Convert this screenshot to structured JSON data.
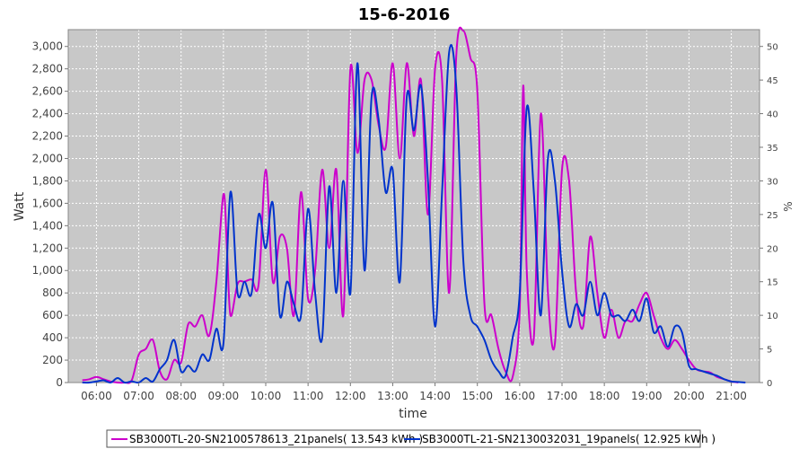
{
  "chart_data": {
    "type": "line",
    "title": "15-6-2016",
    "xlabel": "time",
    "ylabel": "Watt",
    "y2label": "%",
    "xlim": [
      "05:20",
      "21:40"
    ],
    "ylim": [
      0,
      3150
    ],
    "y2lim": [
      0,
      52.5
    ],
    "x_ticks": [
      "06:00",
      "07:00",
      "08:00",
      "09:00",
      "10:00",
      "11:00",
      "12:00",
      "13:00",
      "14:00",
      "15:00",
      "16:00",
      "17:00",
      "18:00",
      "19:00",
      "20:00",
      "21:00"
    ],
    "y_ticks": [
      "0",
      "200",
      "400",
      "600",
      "800",
      "1,000",
      "1,200",
      "1,400",
      "1,600",
      "1,800",
      "2,000",
      "2,200",
      "2,400",
      "2,600",
      "2,800",
      "3,000"
    ],
    "y2_ticks": [
      "0",
      "5",
      "10",
      "15",
      "20",
      "25",
      "30",
      "35",
      "40",
      "45",
      "50"
    ],
    "grid": true,
    "legend_position": "bottom",
    "series": [
      {
        "name": "SB3000TL-20-SN2100578613_21panels( 13.543 kWh )",
        "color": "#cc00cc",
        "x": [
          "05:40",
          "05:50",
          "06:00",
          "06:10",
          "06:20",
          "06:30",
          "06:40",
          "06:50",
          "07:00",
          "07:10",
          "07:20",
          "07:30",
          "07:40",
          "07:50",
          "08:00",
          "08:10",
          "08:20",
          "08:30",
          "08:40",
          "08:50",
          "09:00",
          "09:05",
          "09:10",
          "09:20",
          "09:30",
          "09:40",
          "09:50",
          "10:00",
          "10:10",
          "10:20",
          "10:30",
          "10:40",
          "10:50",
          "11:00",
          "11:10",
          "11:20",
          "11:30",
          "11:40",
          "11:50",
          "12:00",
          "12:10",
          "12:20",
          "12:30",
          "12:40",
          "12:50",
          "13:00",
          "13:10",
          "13:20",
          "13:30",
          "13:40",
          "13:50",
          "14:00",
          "14:10",
          "14:20",
          "14:30",
          "14:40",
          "14:50",
          "15:00",
          "15:10",
          "15:20",
          "15:30",
          "15:40",
          "15:50",
          "16:00",
          "16:05",
          "16:10",
          "16:20",
          "16:30",
          "16:40",
          "16:50",
          "17:00",
          "17:10",
          "17:20",
          "17:30",
          "17:40",
          "17:50",
          "18:00",
          "18:10",
          "18:20",
          "18:30",
          "18:40",
          "18:50",
          "19:00",
          "19:10",
          "19:20",
          "19:30",
          "19:40",
          "19:50",
          "20:00",
          "20:10",
          "20:20",
          "20:30",
          "20:40",
          "20:50",
          "21:00",
          "21:10"
        ],
        "values": [
          20,
          30,
          50,
          30,
          10,
          0,
          0,
          20,
          250,
          300,
          380,
          100,
          30,
          200,
          180,
          520,
          500,
          600,
          420,
          900,
          1680,
          1200,
          600,
          880,
          900,
          920,
          880,
          1900,
          900,
          1300,
          1200,
          600,
          1700,
          750,
          1000,
          1900,
          1200,
          1900,
          600,
          2800,
          2050,
          2700,
          2700,
          2300,
          2100,
          2850,
          2000,
          2850,
          2200,
          2700,
          1500,
          2800,
          2700,
          800,
          2900,
          3140,
          2900,
          2600,
          700,
          600,
          300,
          100,
          50,
          650,
          2650,
          1000,
          400,
          2400,
          800,
          350,
          1900,
          1800,
          800,
          500,
          1300,
          800,
          400,
          650,
          400,
          550,
          550,
          700,
          800,
          600,
          400,
          300,
          380,
          300,
          200,
          120,
          100,
          90,
          50,
          30,
          10,
          0
        ],
        "values_percent": [
          0.3,
          0.5,
          0.8,
          0.5,
          0.2,
          0,
          0,
          0.3,
          4.2,
          5.0,
          6.3,
          1.7,
          0.5,
          3.3,
          3.0,
          8.7,
          8.3,
          10.0,
          7.0,
          15.0,
          28.0,
          20.0,
          10.0,
          14.7,
          15.0,
          15.3,
          14.7,
          31.7,
          15.0,
          21.7,
          20.0,
          10.0,
          28.3,
          12.5,
          16.7,
          31.7,
          20.0,
          31.7,
          10.0,
          46.7,
          34.2,
          45.0,
          45.0,
          38.3,
          35.0,
          47.5,
          33.3,
          47.5,
          36.7,
          45.0,
          25.0,
          46.7,
          45.0,
          13.3,
          48.3,
          52.3,
          48.3,
          43.3,
          11.7,
          10.0,
          5.0,
          1.7,
          0.8,
          10.8,
          44.2,
          16.7,
          6.7,
          40.0,
          13.3,
          5.8,
          31.7,
          30.0,
          13.3,
          8.3,
          21.7,
          13.3,
          6.7,
          10.8,
          6.7,
          9.2,
          9.2,
          11.7,
          13.3,
          10.0,
          6.7,
          5.0,
          6.3,
          5.0,
          3.3,
          2.0,
          1.7,
          1.5,
          0.8,
          0.5,
          0.2,
          0
        ]
      },
      {
        "name": "SB3000TL-21-SN2130032031_19panels( 12.925 kWh )",
        "color": "#0033cc",
        "x": [
          "05:40",
          "05:50",
          "06:00",
          "06:10",
          "06:20",
          "06:30",
          "06:40",
          "06:50",
          "07:00",
          "07:10",
          "07:20",
          "07:30",
          "07:40",
          "07:50",
          "08:00",
          "08:10",
          "08:20",
          "08:30",
          "08:40",
          "08:50",
          "09:00",
          "09:10",
          "09:20",
          "09:30",
          "09:40",
          "09:50",
          "10:00",
          "10:10",
          "10:20",
          "10:30",
          "10:40",
          "10:50",
          "11:00",
          "11:10",
          "11:20",
          "11:30",
          "11:40",
          "11:50",
          "12:00",
          "12:10",
          "12:20",
          "12:30",
          "12:40",
          "12:50",
          "13:00",
          "13:10",
          "13:20",
          "13:30",
          "13:40",
          "13:50",
          "14:00",
          "14:10",
          "14:20",
          "14:30",
          "14:40",
          "14:50",
          "15:00",
          "15:10",
          "15:20",
          "15:30",
          "15:40",
          "15:50",
          "16:00",
          "16:10",
          "16:20",
          "16:30",
          "16:40",
          "16:50",
          "17:00",
          "17:10",
          "17:20",
          "17:30",
          "17:40",
          "17:50",
          "18:00",
          "18:10",
          "18:20",
          "18:30",
          "18:40",
          "18:50",
          "19:00",
          "19:10",
          "19:20",
          "19:30",
          "19:40",
          "19:50",
          "20:00",
          "20:10",
          "20:20",
          "20:30",
          "20:40",
          "20:50",
          "21:00",
          "21:10",
          "21:20"
        ],
        "values": [
          0,
          0,
          10,
          20,
          0,
          40,
          0,
          10,
          0,
          40,
          10,
          120,
          200,
          380,
          100,
          150,
          100,
          250,
          200,
          480,
          350,
          1700,
          800,
          900,
          800,
          1500,
          1200,
          1600,
          600,
          900,
          700,
          600,
          1550,
          800,
          400,
          1750,
          800,
          1800,
          800,
          2850,
          1000,
          2550,
          2350,
          1700,
          1900,
          900,
          2550,
          2250,
          2650,
          1800,
          500,
          1700,
          2950,
          2650,
          1100,
          600,
          500,
          380,
          200,
          100,
          60,
          400,
          800,
          2450,
          1700,
          600,
          2000,
          1800,
          1000,
          500,
          700,
          600,
          900,
          600,
          800,
          600,
          600,
          550,
          650,
          550,
          750,
          450,
          500,
          320,
          500,
          450,
          150,
          120,
          100,
          80,
          60,
          30,
          10,
          5,
          0
        ],
        "values_percent": [
          0,
          0,
          0.2,
          0.3,
          0,
          0.7,
          0,
          0.2,
          0,
          0.7,
          0.2,
          2.0,
          3.3,
          6.3,
          1.7,
          2.5,
          1.7,
          4.2,
          3.3,
          8.0,
          5.8,
          28.3,
          13.3,
          15.0,
          13.3,
          25.0,
          20.0,
          26.7,
          10.0,
          15.0,
          11.7,
          10.0,
          25.8,
          13.3,
          6.7,
          29.2,
          13.3,
          30.0,
          13.3,
          47.5,
          16.7,
          42.5,
          39.2,
          28.3,
          31.7,
          15.0,
          42.5,
          37.5,
          44.2,
          30.0,
          8.3,
          28.3,
          49.2,
          44.2,
          18.3,
          10.0,
          8.3,
          6.3,
          3.3,
          1.7,
          1.0,
          6.7,
          13.3,
          40.8,
          28.3,
          10.0,
          33.3,
          30.0,
          16.7,
          8.3,
          11.7,
          10.0,
          15.0,
          10.0,
          13.3,
          10.0,
          10.0,
          9.2,
          10.8,
          9.2,
          12.5,
          7.5,
          8.3,
          5.3,
          8.3,
          7.5,
          2.5,
          2.0,
          1.7,
          1.3,
          1.0,
          0.5,
          0.2,
          0.1,
          0
        ]
      }
    ]
  }
}
